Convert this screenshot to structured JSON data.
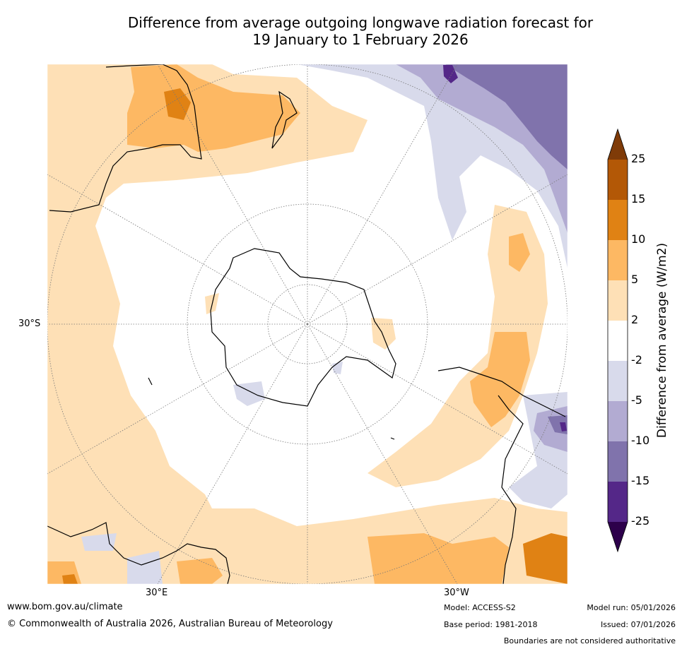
{
  "title": {
    "line1": "Difference from average outgoing longwave radiation forecast for",
    "line2": "19 January to 1 February 2026"
  },
  "map": {
    "lat_label": "30°S",
    "lon_labels": [
      "30°E",
      "30°W"
    ]
  },
  "colorbar": {
    "title": "Difference from average (W/m2)",
    "ticks": [
      "25",
      "15",
      "10",
      "5",
      "2",
      "-2",
      "-5",
      "-10",
      "-15",
      "-25"
    ],
    "colors": {
      "extend_high": "#7f3b08",
      "c15_25": "#b35806",
      "c10_15": "#e08214",
      "c5_10": "#fdb863",
      "c2_5": "#fee0b6",
      "neutral": "#ffffff",
      "n2_5": "#d8daeb",
      "n5_10": "#b2abd2",
      "n10_15": "#8073ac",
      "n15_25": "#542788",
      "extend_low": "#2d004b"
    }
  },
  "footer": {
    "website": "www.bom.gov.au/climate",
    "copyright": "© Commonwealth of Australia 2026, Australian Bureau of Meteorology",
    "model": "Model: ACCESS-S2",
    "base_period": "Base period: 1981-2018",
    "model_run": "Model run: 05/01/2026",
    "issued": "Issued: 07/01/2026",
    "disclaimer": "Boundaries are not considered authoritative"
  }
}
